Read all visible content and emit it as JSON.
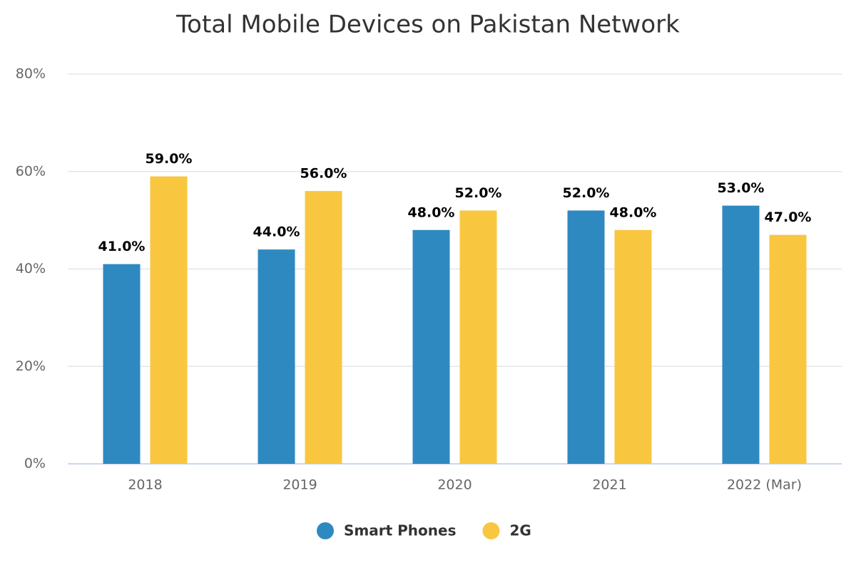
{
  "chart_data": {
    "type": "bar",
    "title": "Total Mobile Devices on Pakistan Network",
    "categories": [
      "2018",
      "2019",
      "2020",
      "2021",
      "2022 (Mar)"
    ],
    "series": [
      {
        "name": "Smart Phones",
        "color": "#2e89c1",
        "values": [
          41.0,
          44.0,
          48.0,
          52.0,
          53.0
        ],
        "value_labels": [
          "41.0%",
          "44.0%",
          "48.0%",
          "52.0%",
          "53.0%"
        ]
      },
      {
        "name": "2G",
        "color": "#f9c640",
        "values": [
          59.0,
          56.0,
          52.0,
          48.0,
          47.0
        ],
        "value_labels": [
          "59.0%",
          "56.0%",
          "52.0%",
          "48.0%",
          "47.0%"
        ]
      }
    ],
    "ylim": [
      0,
      80
    ],
    "yticks": [
      {
        "value": 0,
        "label": "0%"
      },
      {
        "value": 20,
        "label": "20%"
      },
      {
        "value": 40,
        "label": "40%"
      },
      {
        "value": 60,
        "label": "60%"
      },
      {
        "value": 80,
        "label": "80%"
      }
    ],
    "grid": true,
    "legend": "bottom"
  }
}
